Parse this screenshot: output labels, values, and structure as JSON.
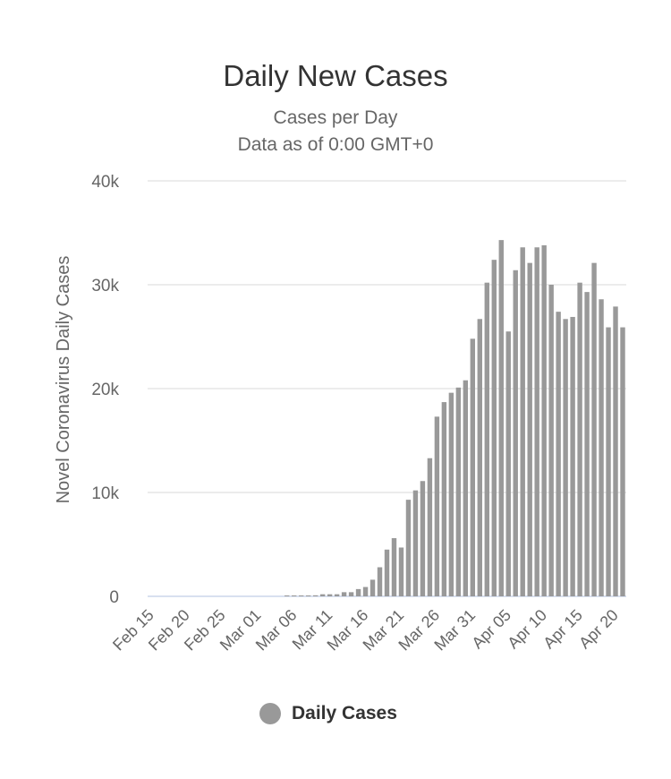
{
  "chart_data": {
    "type": "bar",
    "title": "Daily New Cases",
    "subtitle": [
      "Cases per Day",
      "Data as of 0:00 GMT+0"
    ],
    "ylabel": "Novel Coronavirus Daily Cases",
    "xlabel": "",
    "ylim": [
      0,
      40000
    ],
    "yticks": [
      0,
      10000,
      20000,
      30000,
      40000
    ],
    "ytick_labels": [
      "0",
      "10k",
      "20k",
      "30k",
      "40k"
    ],
    "grid": true,
    "start_date": "Feb 15",
    "xtick_labels": [
      "Feb 15",
      "Feb 20",
      "Feb 25",
      "Mar 01",
      "Mar 06",
      "Mar 11",
      "Mar 16",
      "Mar 21",
      "Mar 26",
      "Mar 31",
      "Apr 05",
      "Apr 10",
      "Apr 15",
      "Apr 20"
    ],
    "xtick_every": 5,
    "color": "#999999",
    "legend": {
      "label": "Daily Cases",
      "position": "bottom"
    },
    "values": [
      0,
      0,
      0,
      0,
      0,
      0,
      0,
      0,
      0,
      0,
      0,
      0,
      0,
      0,
      0,
      0,
      0,
      0,
      0,
      10,
      20,
      30,
      50,
      100,
      200,
      200,
      200,
      400,
      400,
      700,
      900,
      1600,
      2800,
      4500,
      5600,
      4700,
      9300,
      10200,
      11100,
      13300,
      17300,
      18700,
      19600,
      20100,
      20800,
      24800,
      26700,
      30200,
      32400,
      34300,
      25500,
      31400,
      33600,
      32100,
      33600,
      33800,
      30000,
      27400,
      26700,
      26900,
      30200,
      29300,
      32100,
      28600,
      25900,
      27900,
      25900
    ]
  }
}
